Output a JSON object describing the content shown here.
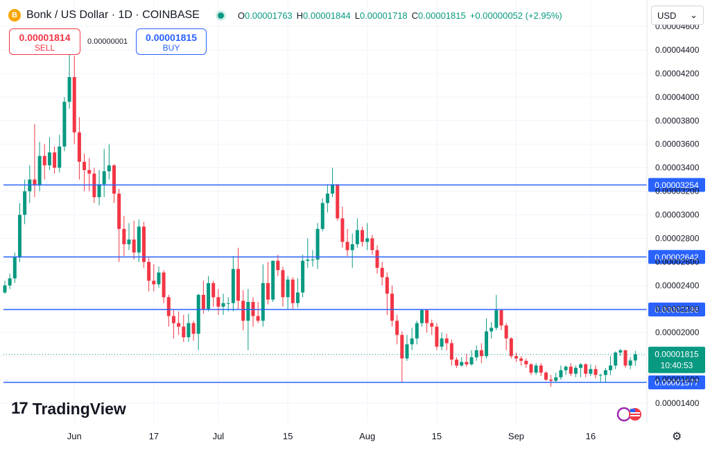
{
  "header": {
    "coin_symbol": "B",
    "title": "Bonk / US Dollar · 1D · COINBASE",
    "ohlc": {
      "o_label": "O",
      "o": "0.00001763",
      "h_label": "H",
      "h": "0.00001844",
      "l_label": "L",
      "l": "0.00001718",
      "c_label": "C",
      "c": "0.00001815",
      "change": "+0.00000052 (+2.95%)"
    },
    "currency": "USD",
    "currency_caret": "⌄"
  },
  "trade": {
    "sell_price": "0.00001814",
    "sell_label": "SELL",
    "spread": "0.00000001",
    "buy_price": "0.00001815",
    "buy_label": "BUY"
  },
  "branding": {
    "logo_mark": "17",
    "logo_text": "TradingView"
  },
  "settings_icon": "⚙",
  "colors": {
    "up": "#089981",
    "down": "#f23645",
    "level": "#2962ff",
    "text": "#131722"
  },
  "chart_data": {
    "type": "candlestick",
    "title": "Bonk / US Dollar · 1D · COINBASE",
    "y_ticks": [
      "0.00001400",
      "0.00001600",
      "0.00001800",
      "0.00002000",
      "0.00002200",
      "0.00002400",
      "0.00002600",
      "0.00002800",
      "0.00003000",
      "0.00003200",
      "0.00003400",
      "0.00003600",
      "0.00003800",
      "0.00004000",
      "0.00004200",
      "0.00004400",
      "0.00004600"
    ],
    "x_ticks": [
      "Jun",
      "17",
      "Jul",
      "15",
      "Aug",
      "15",
      "Sep",
      "16"
    ],
    "ylim": [
      1.33e-05,
      4.65e-05
    ],
    "horizontal_levels": [
      "0.00003254",
      "0.00002642",
      "0.00002196",
      "0.00001577"
    ],
    "last_price": "0.00001815",
    "countdown": "10:40:53",
    "candles": [
      [
        2.34e-05,
        2.4e-05,
        2.33e-05,
        2.44e-05
      ],
      [
        2.4e-05,
        2.46e-05,
        2.37e-05,
        2.5e-05
      ],
      [
        2.46e-05,
        2.64e-05,
        2.42e-05,
        2.68e-05
      ],
      [
        2.64e-05,
        3e-05,
        2.6e-05,
        3.1e-05
      ],
      [
        3e-05,
        3.2e-05,
        2.92e-05,
        3.3e-05
      ],
      [
        3.2e-05,
        3.3e-05,
        3.1e-05,
        3.42e-05
      ],
      [
        3.3e-05,
        3.25e-05,
        3.15e-05,
        3.77e-05
      ],
      [
        3.25e-05,
        3.5e-05,
        3.2e-05,
        3.62e-05
      ],
      [
        3.5e-05,
        3.42e-05,
        3.3e-05,
        3.6e-05
      ],
      [
        3.42e-05,
        3.53e-05,
        3.38e-05,
        3.66e-05
      ],
      [
        3.53e-05,
        3.4e-05,
        3.35e-05,
        3.58e-05
      ],
      [
        3.4e-05,
        3.58e-05,
        3.36e-05,
        3.68e-05
      ],
      [
        3.58e-05,
        3.96e-05,
        3.54e-05,
        4e-05
      ],
      [
        3.96e-05,
        4.17e-05,
        3.9e-05,
        4.38e-05
      ],
      [
        4.17e-05,
        3.7e-05,
        3.6e-05,
        4.35e-05
      ],
      [
        3.7e-05,
        3.45e-05,
        3.3e-05,
        3.83e-05
      ],
      [
        3.45e-05,
        3.38e-05,
        3.2e-05,
        3.52e-05
      ],
      [
        3.38e-05,
        3.35e-05,
        3.2e-05,
        3.48e-05
      ],
      [
        3.35e-05,
        3.15e-05,
        3.1e-05,
        3.4e-05
      ],
      [
        3.15e-05,
        3.26e-05,
        3.08e-05,
        3.38e-05
      ],
      [
        3.26e-05,
        3.37e-05,
        3.15e-05,
        3.56e-05
      ],
      [
        3.37e-05,
        3.42e-05,
        3.3e-05,
        3.6e-05
      ],
      [
        3.42e-05,
        3.18e-05,
        3.1e-05,
        3.43e-05
      ],
      [
        3.18e-05,
        2.88e-05,
        2.6e-05,
        3.22e-05
      ],
      [
        2.88e-05,
        2.75e-05,
        2.65e-05,
        2.99e-05
      ],
      [
        2.75e-05,
        2.79e-05,
        2.7e-05,
        2.93e-05
      ],
      [
        2.79e-05,
        2.68e-05,
        2.62e-05,
        2.95e-05
      ],
      [
        2.68e-05,
        2.9e-05,
        2.6e-05,
        2.96e-05
      ],
      [
        2.9e-05,
        2.6e-05,
        2.55e-05,
        2.94e-05
      ],
      [
        2.6e-05,
        2.44e-05,
        2.35e-05,
        2.64e-05
      ],
      [
        2.44e-05,
        2.41e-05,
        2.35e-05,
        2.58e-05
      ],
      [
        2.41e-05,
        2.51e-05,
        2.38e-05,
        2.56e-05
      ],
      [
        2.51e-05,
        2.3e-05,
        2.25e-05,
        2.53e-05
      ],
      [
        2.3e-05,
        2.14e-05,
        2.05e-05,
        2.32e-05
      ],
      [
        2.14e-05,
        2.08e-05,
        1.95e-05,
        2.2e-05
      ],
      [
        2.08e-05,
        2.05e-05,
        1.98e-05,
        2.18e-05
      ],
      [
        2.05e-05,
        1.96e-05,
        1.92e-05,
        2.15e-05
      ],
      [
        1.96e-05,
        2.08e-05,
        1.92e-05,
        2.16e-05
      ],
      [
        2.08e-05,
        1.99e-05,
        1.93e-05,
        2.1e-05
      ],
      [
        1.99e-05,
        2.32e-05,
        1.85e-05,
        2.33e-05
      ],
      [
        2.32e-05,
        2.2e-05,
        2.16e-05,
        2.44e-05
      ],
      [
        2.2e-05,
        2.42e-05,
        2.18e-05,
        2.48e-05
      ],
      [
        2.42e-05,
        2.3e-05,
        2.22e-05,
        2.44e-05
      ],
      [
        2.3e-05,
        2.22e-05,
        2.15e-05,
        2.37e-05
      ],
      [
        2.22e-05,
        2.25e-05,
        2.15e-05,
        2.33e-05
      ],
      [
        2.25e-05,
        2.25e-05,
        2.18e-05,
        2.3e-05
      ],
      [
        2.25e-05,
        2.54e-05,
        2.18e-05,
        2.65e-05
      ],
      [
        2.54e-05,
        2.27e-05,
        2.2e-05,
        2.72e-05
      ],
      [
        2.27e-05,
        2.1e-05,
        2.02e-05,
        2.36e-05
      ],
      [
        2.1e-05,
        2.26e-05,
        1.85e-05,
        2.37e-05
      ],
      [
        2.26e-05,
        2.14e-05,
        2.05e-05,
        2.3e-05
      ],
      [
        2.14e-05,
        2.1e-05,
        2.08e-05,
        2.26e-05
      ],
      [
        2.1e-05,
        2.42e-05,
        2.05e-05,
        2.58e-05
      ],
      [
        2.42e-05,
        2.28e-05,
        2.24e-05,
        2.6e-05
      ],
      [
        2.28e-05,
        2.61e-05,
        2.26e-05,
        2.61e-05
      ],
      [
        2.61e-05,
        2.53e-05,
        2.48e-05,
        2.66e-05
      ],
      [
        2.53e-05,
        2.3e-05,
        2.22e-05,
        2.56e-05
      ],
      [
        2.3e-05,
        2.45e-05,
        2.2e-05,
        2.48e-05
      ],
      [
        2.45e-05,
        2.25e-05,
        2.2e-05,
        2.47e-05
      ],
      [
        2.25e-05,
        2.34e-05,
        2.21e-05,
        2.46e-05
      ],
      [
        2.34e-05,
        2.61e-05,
        2.3e-05,
        2.66e-05
      ],
      [
        2.61e-05,
        2.62e-05,
        2.55e-05,
        2.8e-05
      ],
      [
        2.62e-05,
        2.62e-05,
        2.56e-05,
        2.7e-05
      ],
      [
        2.62e-05,
        2.88e-05,
        2.54e-05,
        2.93e-05
      ],
      [
        2.88e-05,
        3.1e-05,
        2.86e-05,
        3.14e-05
      ],
      [
        3.1e-05,
        3.18e-05,
        3.02e-05,
        3.26e-05
      ],
      [
        3.18e-05,
        3.26e-05,
        3.15e-05,
        3.4e-05
      ],
      [
        3.26e-05,
        2.97e-05,
        2.95e-05,
        3.24e-05
      ],
      [
        2.97e-05,
        2.77e-05,
        2.72e-05,
        3.07e-05
      ],
      [
        2.77e-05,
        2.7e-05,
        2.65e-05,
        2.88e-05
      ],
      [
        2.7e-05,
        2.75e-05,
        2.55e-05,
        2.84e-05
      ],
      [
        2.75e-05,
        2.87e-05,
        2.72e-05,
        2.97e-05
      ],
      [
        2.87e-05,
        2.77e-05,
        2.73e-05,
        2.9e-05
      ],
      [
        2.77e-05,
        2.8e-05,
        2.7e-05,
        2.93e-05
      ],
      [
        2.8e-05,
        2.7e-05,
        2.66e-05,
        2.83e-05
      ],
      [
        2.7e-05,
        2.55e-05,
        2.5e-05,
        2.74e-05
      ],
      [
        2.55e-05,
        2.47e-05,
        2.4e-05,
        2.6e-05
      ],
      [
        2.47e-05,
        2.33e-05,
        2.15e-05,
        2.51e-05
      ],
      [
        2.33e-05,
        2.1e-05,
        2.05e-05,
        2.4e-05
      ],
      [
        2.1e-05,
        1.98e-05,
        1.9e-05,
        2.15e-05
      ],
      [
        1.98e-05,
        1.78e-05,
        1.577e-05,
        2.01e-05
      ],
      [
        1.78e-05,
        1.9e-05,
        1.76e-05,
        1.98e-05
      ],
      [
        1.9e-05,
        1.95e-05,
        1.85e-05,
        2.04e-05
      ],
      [
        1.95e-05,
        2.08e-05,
        1.9e-05,
        2.1e-05
      ],
      [
        2.08e-05,
        2.19e-05,
        2.05e-05,
        2.2e-05
      ],
      [
        2.19e-05,
        2.08e-05,
        2e-05,
        2.2e-05
      ],
      [
        2.08e-05,
        2.05e-05,
        1.98e-05,
        2.11e-05
      ],
      [
        2.05e-05,
        1.88e-05,
        1.85e-05,
        2.08e-05
      ],
      [
        1.88e-05,
        1.95e-05,
        1.85e-05,
        2e-05
      ],
      [
        1.95e-05,
        1.91e-05,
        1.85e-05,
        1.99e-05
      ],
      [
        1.91e-05,
        1.77e-05,
        1.72e-05,
        1.94e-05
      ],
      [
        1.77e-05,
        1.72e-05,
        1.7e-05,
        1.79e-05
      ],
      [
        1.72e-05,
        1.75e-05,
        1.71e-05,
        1.79e-05
      ],
      [
        1.75e-05,
        1.73e-05,
        1.71e-05,
        1.82e-05
      ],
      [
        1.73e-05,
        1.79e-05,
        1.72e-05,
        1.85e-05
      ],
      [
        1.79e-05,
        1.85e-05,
        1.76e-05,
        1.89e-05
      ],
      [
        1.85e-05,
        1.8e-05,
        1.74e-05,
        1.91e-05
      ],
      [
        1.8e-05,
        2.01e-05,
        1.78e-05,
        2.12e-05
      ],
      [
        2.01e-05,
        2.04e-05,
        1.95e-05,
        2.09e-05
      ],
      [
        2.04e-05,
        2.19e-05,
        2.02e-05,
        2.32e-05
      ],
      [
        2.19e-05,
        2.06e-05,
        2.02e-05,
        2.2e-05
      ],
      [
        2.06e-05,
        1.95e-05,
        1.85e-05,
        2.08e-05
      ],
      [
        1.95e-05,
        1.8e-05,
        1.78e-05,
        1.96e-05
      ],
      [
        1.8e-05,
        1.78e-05,
        1.75e-05,
        1.83e-05
      ],
      [
        1.78e-05,
        1.76e-05,
        1.72e-05,
        1.8e-05
      ],
      [
        1.76e-05,
        1.73e-05,
        1.7e-05,
        1.78e-05
      ],
      [
        1.73e-05,
        1.66e-05,
        1.64e-05,
        1.74e-05
      ],
      [
        1.66e-05,
        1.72e-05,
        1.64e-05,
        1.74e-05
      ],
      [
        1.72e-05,
        1.66e-05,
        1.63e-05,
        1.74e-05
      ],
      [
        1.66e-05,
        1.6e-05,
        1.59e-05,
        1.67e-05
      ],
      [
        1.6e-05,
        1.59e-05,
        1.54e-05,
        1.64e-05
      ],
      [
        1.59e-05,
        1.62e-05,
        1.58e-05,
        1.66e-05
      ],
      [
        1.62e-05,
        1.68e-05,
        1.6e-05,
        1.72e-05
      ],
      [
        1.68e-05,
        1.71e-05,
        1.64e-05,
        1.72e-05
      ],
      [
        1.71e-05,
        1.65e-05,
        1.63e-05,
        1.74e-05
      ],
      [
        1.65e-05,
        1.7e-05,
        1.62e-05,
        1.72e-05
      ],
      [
        1.7e-05,
        1.73e-05,
        1.62e-05,
        1.74e-05
      ],
      [
        1.73e-05,
        1.65e-05,
        1.62e-05,
        1.74e-05
      ],
      [
        1.65e-05,
        1.69e-05,
        1.63e-05,
        1.73e-05
      ],
      [
        1.69e-05,
        1.64e-05,
        1.61e-05,
        1.72e-05
      ],
      [
        1.64e-05,
        1.64e-05,
        1.58e-05,
        1.65e-05
      ],
      [
        1.64e-05,
        1.68e-05,
        1.58e-05,
        1.7e-05
      ],
      [
        1.68e-05,
        1.72e-05,
        1.64e-05,
        1.8e-05
      ],
      [
        1.72e-05,
        1.83e-05,
        1.69e-05,
        1.84e-05
      ],
      [
        1.83e-05,
        1.85e-05,
        1.8e-05,
        1.86e-05
      ],
      [
        1.85e-05,
        1.72e-05,
        1.7e-05,
        1.85e-05
      ],
      [
        1.72e-05,
        1.763e-05,
        1.69e-05,
        1.79e-05
      ],
      [
        1.763e-05,
        1.815e-05,
        1.718e-05,
        1.844e-05
      ]
    ]
  }
}
